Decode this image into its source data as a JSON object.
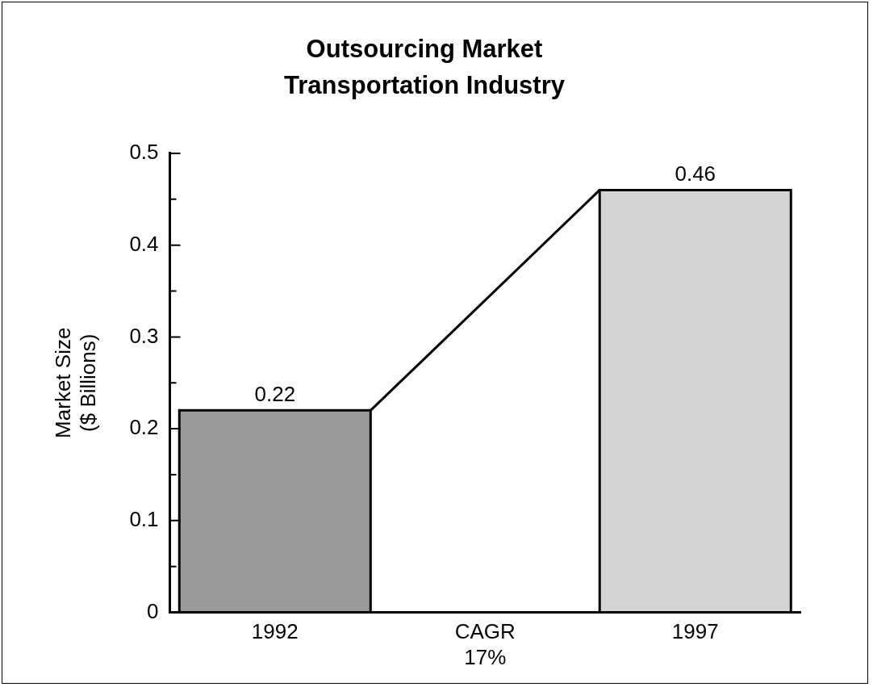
{
  "chart_data": {
    "type": "bar",
    "title": "Outsourcing Market\nTransportation Industry",
    "ylabel": "Market Size\n($ Billions)",
    "categories": [
      "1992",
      "CAGR\n17%",
      "1997"
    ],
    "values": [
      0.22,
      null,
      0.46
    ],
    "colors": [
      "#9a9a9a",
      "#ffffff",
      "#d4d4d4"
    ],
    "ylim": [
      0,
      0.5
    ],
    "yticks": [
      0,
      {
        "value": 0.05,
        "label": null
      },
      0.1,
      {
        "value": 0.15,
        "label": null
      },
      0.2,
      {
        "value": 0.25,
        "label": null
      },
      0.3,
      {
        "value": 0.35,
        "label": null
      },
      0.4,
      {
        "value": 0.45,
        "label": null
      },
      0.5
    ],
    "data_labels": true,
    "grid": false,
    "legend": false
  }
}
